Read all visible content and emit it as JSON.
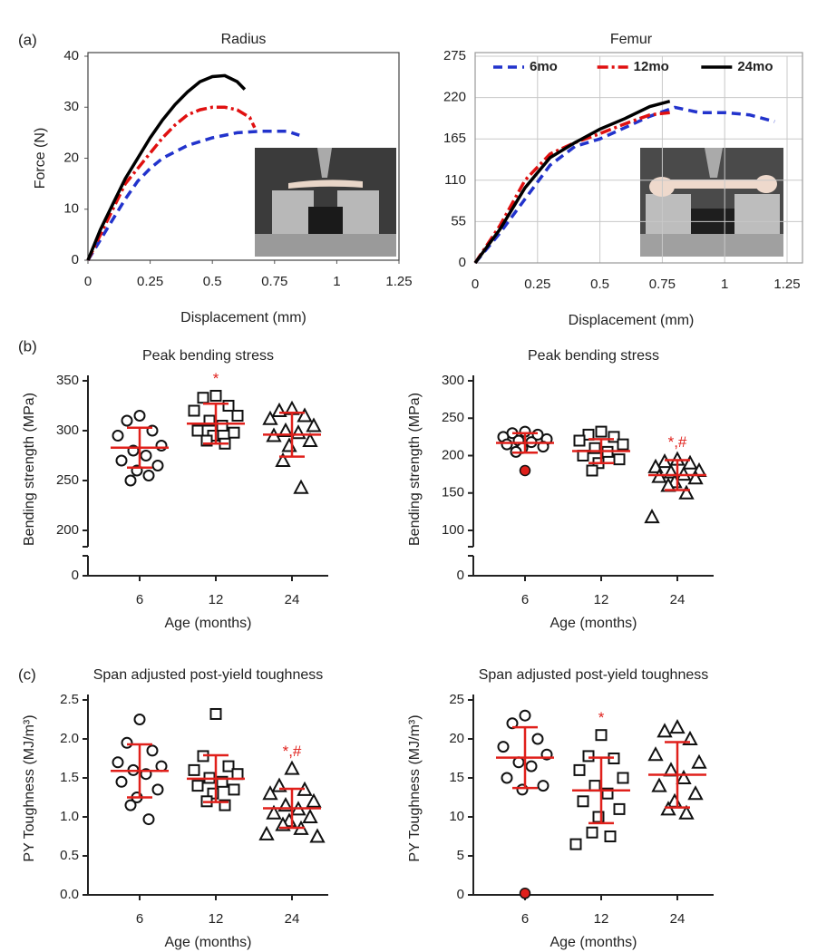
{
  "panel_labels": [
    "(a)",
    "(b)",
    "(c)"
  ],
  "chart_data": [
    {
      "type": "line",
      "title": "Radius",
      "xlabel": "Displacement (mm)",
      "ylabel": "Force (N)",
      "xlim": [
        0,
        1.25
      ],
      "ylim": [
        0,
        40
      ],
      "xticks": [
        0,
        0.25,
        0.5,
        0.75,
        1,
        1.25
      ],
      "yticks": [
        0,
        10,
        20,
        30,
        40
      ],
      "grid": false,
      "series": [
        {
          "color": "#2233cc",
          "dash": "dashed",
          "x": [
            0,
            0.05,
            0.1,
            0.15,
            0.2,
            0.25,
            0.3,
            0.4,
            0.5,
            0.6,
            0.7,
            0.8,
            0.85
          ],
          "values": [
            0,
            4,
            8,
            12,
            15.5,
            18,
            20,
            22.5,
            24,
            25,
            25.3,
            25.3,
            24.5
          ]
        },
        {
          "color": "#e01010",
          "dash": "dashdot",
          "x": [
            0,
            0.05,
            0.1,
            0.15,
            0.2,
            0.25,
            0.3,
            0.35,
            0.4,
            0.45,
            0.5,
            0.55,
            0.6,
            0.65,
            0.67
          ],
          "values": [
            0,
            5,
            10,
            15,
            18,
            21,
            24,
            26.5,
            28.5,
            29.5,
            30,
            30,
            29.5,
            28,
            26
          ]
        },
        {
          "color": "#000000",
          "dash": "solid",
          "x": [
            0,
            0.05,
            0.1,
            0.15,
            0.2,
            0.25,
            0.3,
            0.35,
            0.4,
            0.45,
            0.5,
            0.55,
            0.6,
            0.63
          ],
          "values": [
            0,
            6,
            11,
            16,
            20,
            24,
            27.5,
            30.5,
            33,
            35,
            36,
            36.2,
            35,
            33.5
          ]
        }
      ]
    },
    {
      "type": "line",
      "title": "Femur",
      "xlabel": "Displacement (mm)",
      "xlim": [
        0,
        1.25
      ],
      "ylim": [
        0,
        275
      ],
      "xticks": [
        0,
        0.25,
        0.5,
        0.75,
        1,
        1.25
      ],
      "yticks": [
        0,
        55,
        110,
        165,
        220,
        275
      ],
      "grid": true,
      "legend": "top",
      "series": [
        {
          "name": "6mo",
          "color": "#2233cc",
          "dash": "dashed",
          "x": [
            0,
            0.1,
            0.2,
            0.3,
            0.4,
            0.5,
            0.6,
            0.7,
            0.8,
            0.9,
            1,
            1.1,
            1.2
          ],
          "values": [
            0,
            40,
            85,
            130,
            155,
            165,
            180,
            195,
            207,
            200,
            200,
            197,
            188
          ]
        },
        {
          "name": "12mo",
          "color": "#e01010",
          "dash": "dashdot",
          "x": [
            0,
            0.1,
            0.2,
            0.3,
            0.4,
            0.5,
            0.6,
            0.7,
            0.78
          ],
          "values": [
            0,
            50,
            110,
            145,
            160,
            172,
            185,
            197,
            200
          ]
        },
        {
          "name": "24mo",
          "color": "#000000",
          "dash": "solid",
          "x": [
            0,
            0.1,
            0.2,
            0.3,
            0.4,
            0.5,
            0.6,
            0.7,
            0.78
          ],
          "values": [
            0,
            45,
            100,
            140,
            160,
            178,
            192,
            208,
            215
          ]
        }
      ]
    },
    {
      "type": "dot",
      "title": "Peak bending stress",
      "xlabel": "Age (months)",
      "ylabel": "Bending strength (MPa)",
      "categories": [
        "6",
        "12",
        "24"
      ],
      "ylim": [
        0,
        350
      ],
      "yticks": [
        0,
        200,
        250,
        300,
        350
      ],
      "axis_break": [
        0,
        200
      ],
      "color": "#e0201b",
      "groups": [
        {
          "marker": "circle",
          "values": [
            315,
            310,
            300,
            295,
            285,
            280,
            275,
            270,
            265,
            260,
            250,
            255
          ],
          "mean": 283,
          "sd": 20
        },
        {
          "marker": "square",
          "values": [
            335,
            333,
            325,
            320,
            315,
            310,
            305,
            300,
            298,
            295,
            290,
            287
          ],
          "mean": 307,
          "sd": 20,
          "annotation": "*"
        },
        {
          "marker": "triangle",
          "values": [
            322,
            320,
            315,
            312,
            305,
            300,
            298,
            295,
            290,
            285,
            270,
            243
          ],
          "mean": 296,
          "sd": 22
        }
      ]
    },
    {
      "type": "dot",
      "title": "Peak bending stress",
      "xlabel": "Age (months)",
      "ylabel": "Bending strength (MPa)",
      "categories": [
        "6",
        "12",
        "24"
      ],
      "ylim": [
        0,
        300
      ],
      "yticks": [
        0,
        100,
        150,
        200,
        250,
        300
      ],
      "axis_break": [
        0,
        100
      ],
      "color": "#e0201b",
      "groups": [
        {
          "marker": "circle",
          "values": [
            232,
            230,
            228,
            225,
            222,
            220,
            218,
            215,
            212,
            210,
            205
          ],
          "outliers": [
            180
          ],
          "mean": 217,
          "sd": 13
        },
        {
          "marker": "square",
          "values": [
            232,
            228,
            225,
            220,
            215,
            210,
            205,
            200,
            195,
            190,
            180
          ],
          "mean": 206,
          "sd": 16
        },
        {
          "marker": "triangle",
          "values": [
            195,
            192,
            190,
            185,
            180,
            178,
            175,
            172,
            170,
            165,
            160,
            150,
            118
          ],
          "mean": 174,
          "sd": 20,
          "annotation": "*,#"
        }
      ]
    },
    {
      "type": "dot",
      "title": "Span adjusted post-yield toughness",
      "xlabel": "Age (months)",
      "ylabel": "PY Toughness (MJ/m³)",
      "categories": [
        "6",
        "12",
        "24"
      ],
      "ylim": [
        0,
        2.5
      ],
      "yticks": [
        {
          "value": 0,
          "label": "0.0"
        },
        0.5,
        {
          "value": 1,
          "label": "1.0"
        },
        1.5,
        {
          "value": 2,
          "label": "2.0"
        },
        2.5
      ],
      "color": "#e0201b",
      "groups": [
        {
          "marker": "circle",
          "values": [
            2.25,
            1.95,
            1.85,
            1.7,
            1.65,
            1.6,
            1.55,
            1.45,
            1.35,
            1.25,
            1.15,
            0.97
          ],
          "mean": 1.59,
          "sd": 0.34
        },
        {
          "marker": "square",
          "values": [
            2.32,
            1.78,
            1.65,
            1.6,
            1.55,
            1.5,
            1.45,
            1.4,
            1.35,
            1.3,
            1.2,
            1.15
          ],
          "mean": 1.49,
          "sd": 0.3
        },
        {
          "marker": "triangle",
          "values": [
            1.62,
            1.4,
            1.35,
            1.3,
            1.2,
            1.15,
            1.1,
            1.05,
            1.0,
            0.95,
            0.9,
            0.85,
            0.78,
            0.75
          ],
          "mean": 1.11,
          "sd": 0.25,
          "annotation": "*,#"
        }
      ]
    },
    {
      "type": "dot",
      "title": "Span adjusted post-yield toughness",
      "xlabel": "Age (months)",
      "ylabel": "PY Toughness (MJ/m³)",
      "categories": [
        "6",
        "12",
        "24"
      ],
      "ylim": [
        0,
        25
      ],
      "yticks": [
        0,
        5,
        10,
        15,
        20,
        25
      ],
      "color": "#e0201b",
      "groups": [
        {
          "marker": "circle",
          "values": [
            23,
            22,
            20,
            19,
            18,
            17,
            16.5,
            15,
            14,
            13.5
          ],
          "outliers": [
            0.2
          ],
          "mean": 17.6,
          "sd": 3.9
        },
        {
          "marker": "square",
          "values": [
            20.5,
            17.8,
            17.5,
            16,
            15,
            14,
            13,
            12,
            11,
            10,
            8,
            7.5,
            6.5
          ],
          "mean": 13.4,
          "sd": 4.2,
          "annotation": "*"
        },
        {
          "marker": "triangle",
          "values": [
            21.5,
            21,
            20,
            18,
            17,
            16,
            15,
            14,
            13,
            12,
            11,
            10.5
          ],
          "mean": 15.4,
          "sd": 4.2
        }
      ]
    }
  ]
}
